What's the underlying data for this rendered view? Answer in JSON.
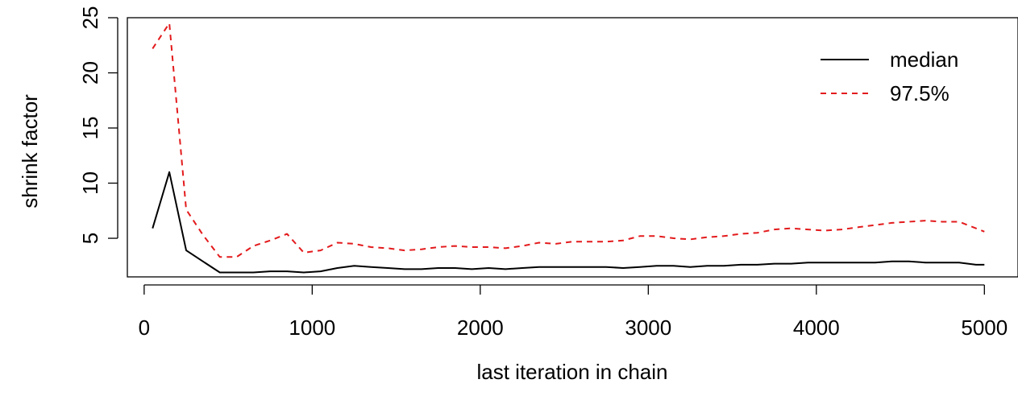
{
  "chart_data": {
    "type": "line",
    "xlabel": "last iteration in chain",
    "ylabel": "shrink factor",
    "xlim": [
      -100,
      5200
    ],
    "ylim": [
      1.5,
      25
    ],
    "xticks": [
      0,
      1000,
      2000,
      3000,
      4000,
      5000
    ],
    "yticks": [
      5,
      10,
      15,
      20,
      25
    ],
    "grid": false,
    "legend_position": "top-right",
    "series": [
      {
        "name": "median",
        "color": "#000000",
        "dash": "solid",
        "x": [
          50,
          150,
          250,
          350,
          450,
          550,
          650,
          750,
          850,
          950,
          1050,
          1150,
          1250,
          1350,
          1450,
          1550,
          1650,
          1750,
          1850,
          1950,
          2050,
          2150,
          2250,
          2350,
          2450,
          2550,
          2650,
          2750,
          2850,
          2950,
          3050,
          3150,
          3250,
          3350,
          3450,
          3550,
          3650,
          3750,
          3850,
          3950,
          4050,
          4150,
          4250,
          4350,
          4450,
          4550,
          4650,
          4750,
          4850,
          4950,
          5000
        ],
        "values": [
          5.9,
          11.0,
          3.9,
          2.9,
          1.9,
          1.9,
          1.9,
          2.0,
          2.0,
          1.9,
          2.0,
          2.3,
          2.5,
          2.4,
          2.3,
          2.2,
          2.2,
          2.3,
          2.3,
          2.2,
          2.3,
          2.2,
          2.3,
          2.4,
          2.4,
          2.4,
          2.4,
          2.4,
          2.3,
          2.4,
          2.5,
          2.5,
          2.4,
          2.5,
          2.5,
          2.6,
          2.6,
          2.7,
          2.7,
          2.8,
          2.8,
          2.8,
          2.8,
          2.8,
          2.9,
          2.9,
          2.8,
          2.8,
          2.8,
          2.6,
          2.6
        ]
      },
      {
        "name": "97.5%",
        "color": "#e31a1c",
        "dash": "dashed",
        "x": [
          50,
          150,
          250,
          350,
          450,
          550,
          650,
          750,
          850,
          950,
          1050,
          1150,
          1250,
          1350,
          1450,
          1550,
          1650,
          1750,
          1850,
          1950,
          2050,
          2150,
          2250,
          2350,
          2450,
          2550,
          2650,
          2750,
          2850,
          2950,
          3050,
          3150,
          3250,
          3350,
          3450,
          3550,
          3650,
          3750,
          3850,
          3950,
          4050,
          4150,
          4250,
          4350,
          4450,
          4550,
          4650,
          4750,
          4850,
          4950,
          5000
        ],
        "values": [
          22.2,
          24.5,
          7.6,
          5.3,
          3.3,
          3.3,
          4.3,
          4.8,
          5.4,
          3.7,
          3.9,
          4.6,
          4.5,
          4.2,
          4.1,
          3.9,
          4.0,
          4.2,
          4.3,
          4.2,
          4.2,
          4.1,
          4.3,
          4.6,
          4.5,
          4.7,
          4.7,
          4.7,
          4.8,
          5.2,
          5.2,
          5.0,
          4.9,
          5.1,
          5.2,
          5.4,
          5.5,
          5.8,
          5.9,
          5.8,
          5.7,
          5.8,
          6.0,
          6.2,
          6.4,
          6.5,
          6.6,
          6.5,
          6.5,
          5.9,
          5.6
        ]
      }
    ]
  }
}
